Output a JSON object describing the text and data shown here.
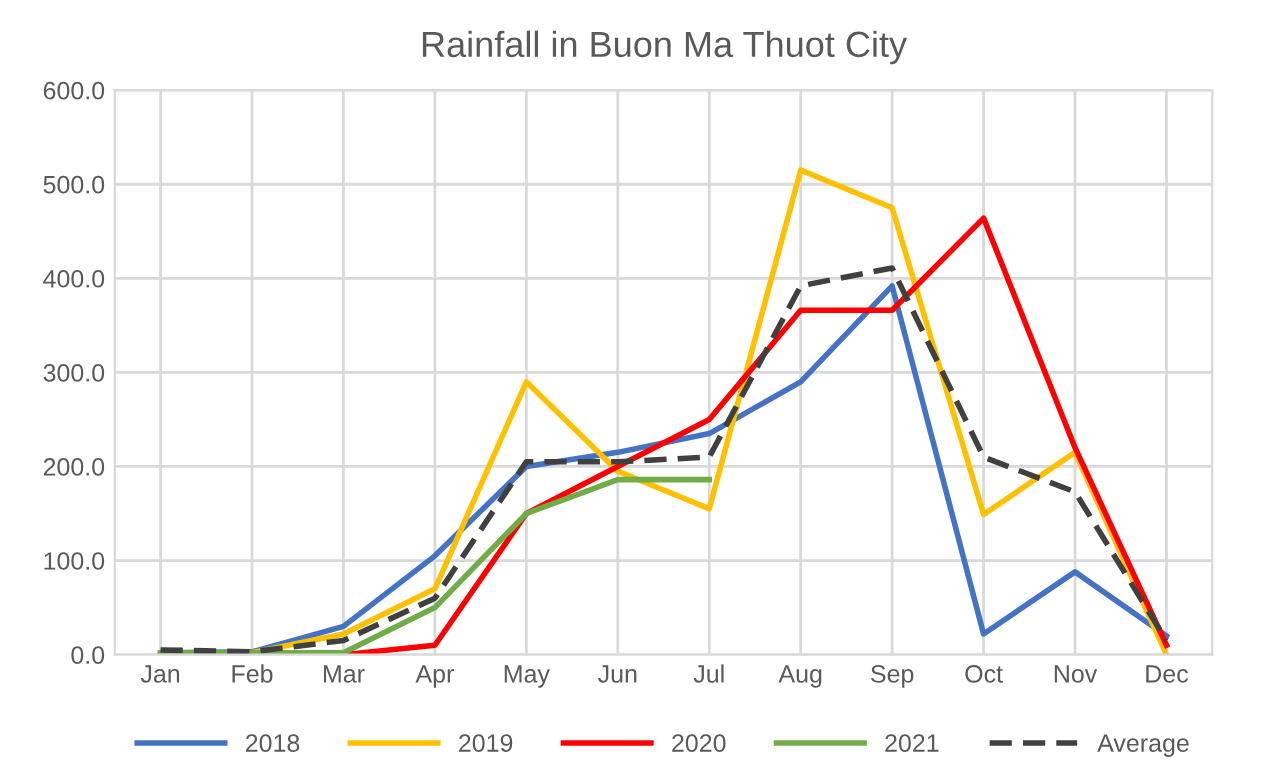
{
  "chart_data": {
    "type": "line",
    "title": "Rainfall in Buon Ma Thuot City",
    "categories": [
      "Jan",
      "Feb",
      "Mar",
      "Apr",
      "May",
      "Jun",
      "Jul",
      "Aug",
      "Sep",
      "Oct",
      "Nov",
      "Dec"
    ],
    "series": [
      {
        "name": "2018",
        "color": "#4472c4",
        "values": [
          2,
          3,
          30,
          105,
          200,
          215,
          235,
          290,
          392,
          22,
          88,
          20
        ]
      },
      {
        "name": "2019",
        "color": "#ffc000",
        "values": [
          0,
          2,
          22,
          70,
          290,
          195,
          155,
          515,
          475,
          149,
          215,
          0
        ]
      },
      {
        "name": "2020",
        "color": "#ff0000",
        "values": [
          0,
          0,
          0,
          10,
          150,
          200,
          250,
          366,
          366,
          464,
          220,
          10
        ]
      },
      {
        "name": "2021",
        "color": "#70ad47",
        "values": [
          2,
          2,
          2,
          50,
          150,
          186,
          186,
          null,
          null,
          null,
          null,
          null
        ]
      },
      {
        "name": "Average",
        "color": "#404040",
        "line_style": "dashed",
        "values": [
          5,
          3,
          15,
          60,
          205,
          205,
          210,
          392,
          411,
          210,
          173,
          15
        ]
      }
    ],
    "ylim": [
      0,
      600
    ],
    "yticks": [
      {
        "value": 0,
        "label": "0.0"
      },
      {
        "value": 100,
        "label": "100.0"
      },
      {
        "value": 200,
        "label": "200.0"
      },
      {
        "value": 300,
        "label": "300.0"
      },
      {
        "value": 400,
        "label": "400.0"
      },
      {
        "value": 500,
        "label": "500.0"
      },
      {
        "value": 600,
        "label": "600.0"
      }
    ],
    "grid": true,
    "legend": "bottom",
    "marker": "none",
    "line_style": "solid"
  }
}
